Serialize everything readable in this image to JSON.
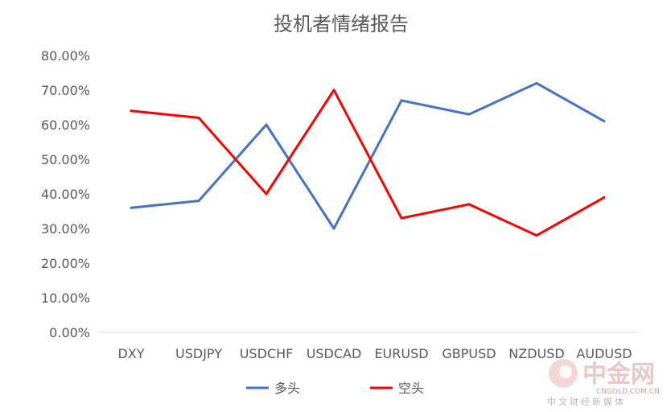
{
  "chart_data": {
    "type": "line",
    "title": "投机者情绪报告",
    "categories": [
      "DXY",
      "USDJPY",
      "USDCHF",
      "USDCAD",
      "EURUSD",
      "GBPUSD",
      "NZDUSD",
      "AUDUSD"
    ],
    "series": [
      {
        "name": "多头",
        "color": "#4472c4",
        "values": [
          0.36,
          0.38,
          0.6,
          0.3,
          0.67,
          0.63,
          0.72,
          0.61
        ]
      },
      {
        "name": "空头",
        "color": "#ff0000",
        "values": [
          0.64,
          0.62,
          0.4,
          0.7,
          0.33,
          0.37,
          0.28,
          0.39
        ]
      }
    ],
    "ylim": [
      0,
      0.8
    ],
    "yticks": [
      "0.00%",
      "10.00%",
      "20.00%",
      "30.00%",
      "40.00%",
      "50.00%",
      "60.00%",
      "70.00%",
      "80.00%"
    ],
    "grid": false,
    "legend_position": "bottom"
  },
  "watermark": {
    "brand": "中金网",
    "domain": "CNGOLD.COM.CN",
    "tagline": "中文财经新媒体"
  }
}
